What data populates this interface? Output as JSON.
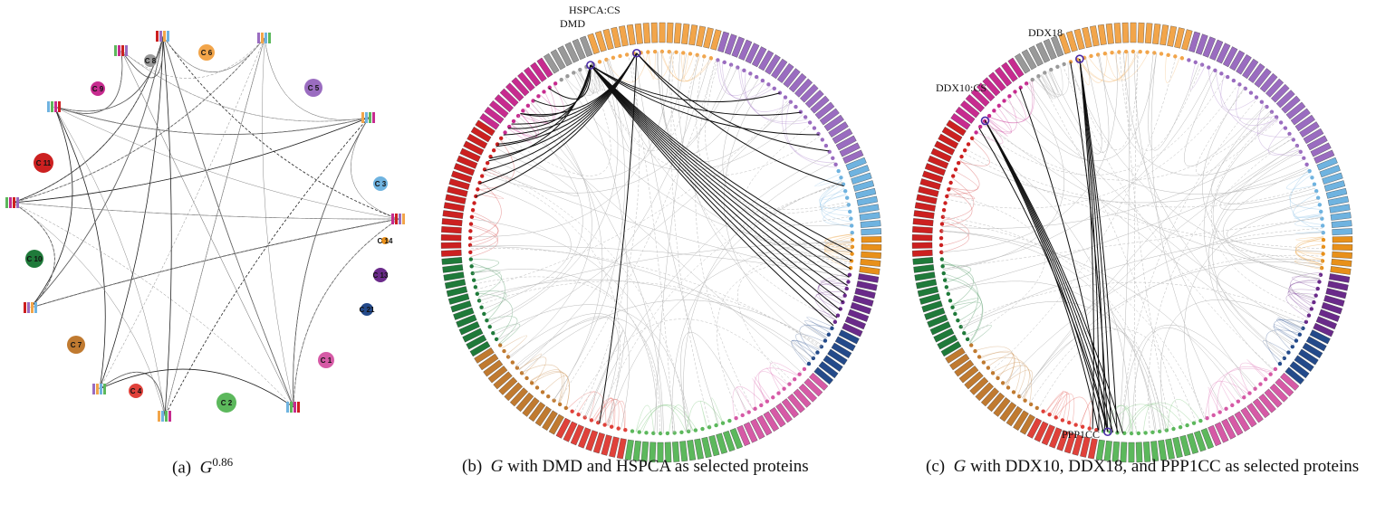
{
  "palette": {
    "c1": "#d65aa6",
    "c2": "#5cb85c",
    "c3": "#6fb3e0",
    "c4": "#e0413a",
    "c5": "#9a6cc0",
    "c6": "#f2a54a",
    "c7": "#c07a30",
    "c8": "#999999",
    "c9": "#c72b8f",
    "c10": "#1f7a3a",
    "c11": "#cc2020",
    "c13": "#6a2a8a",
    "c14": "#e8901a",
    "c21": "#244a8a"
  },
  "panel_a": {
    "caption_prefix": "(a)",
    "caption_symbol": "G",
    "caption_exponent": "0.86",
    "clusters": [
      {
        "label": "C 1",
        "color": "#d65aa6"
      },
      {
        "label": "C 2",
        "color": "#5cb85c"
      },
      {
        "label": "C 3",
        "color": "#6fb3e0"
      },
      {
        "label": "C 4",
        "color": "#e0413a"
      },
      {
        "label": "C 5",
        "color": "#9a6cc0"
      },
      {
        "label": "C 6",
        "color": "#f2a54a"
      },
      {
        "label": "C 7",
        "color": "#c07a30"
      },
      {
        "label": "C 8",
        "color": "#999999"
      },
      {
        "label": "C 9",
        "color": "#c72b8f"
      },
      {
        "label": "C 10",
        "color": "#1f7a3a"
      },
      {
        "label": "C 11",
        "color": "#cc2020"
      },
      {
        "label": "C 13",
        "color": "#6a2a8a"
      },
      {
        "label": "C 14",
        "color": "#e8901a"
      },
      {
        "label": "C 21",
        "color": "#244a8a"
      }
    ]
  },
  "panel_b": {
    "caption_prefix": "(b)",
    "caption_symbol": "G",
    "caption_text": "with DMD and HSPCA as selected proteins",
    "labels": [
      "HSPCA:CS",
      "DMD"
    ]
  },
  "panel_c": {
    "caption_prefix": "(c)",
    "caption_symbol": "G",
    "caption_text": "with DDX10, DDX18, and PPP1CC as selected proteins",
    "labels": [
      "DDX18",
      "DDX10:CS",
      "PPP1CC"
    ]
  }
}
